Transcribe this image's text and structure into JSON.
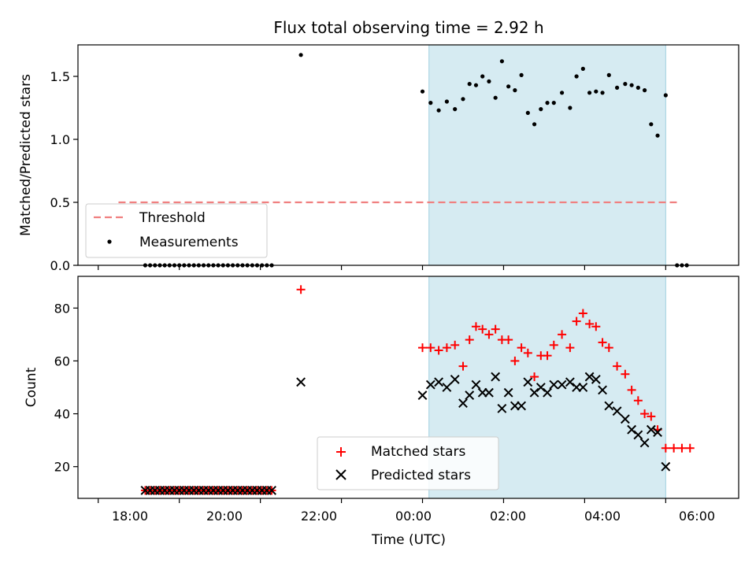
{
  "chart_data": [
    {
      "type": "scatter",
      "title": "Flux total observing time = 2.92 h",
      "ylabel": "Matched/Predicted stars",
      "xlim": [
        -1.25,
        6.9
      ],
      "ylim": [
        0,
        1.75
      ],
      "yticks": [
        0.0,
        0.5,
        1.0,
        1.5
      ],
      "ytick_labels": [
        "0.0",
        "0.5",
        "1.0",
        "1.5"
      ],
      "shaded_span": [
        3.08,
        6.0
      ],
      "shaded_color": "#add8e6",
      "threshold": {
        "label": "Threshold",
        "value": 0.5,
        "x_range": [
          -0.75,
          6.17
        ],
        "color": "#f08080"
      },
      "measurements": {
        "label": "Measurements",
        "color": "#000000",
        "points": [
          [
            -0.42,
            0.0
          ],
          [
            -0.36,
            0.0
          ],
          [
            -0.3,
            0.0
          ],
          [
            -0.24,
            0.0
          ],
          [
            -0.18,
            0.0
          ],
          [
            -0.12,
            0.0
          ],
          [
            -0.06,
            0.0
          ],
          [
            0.0,
            0.0
          ],
          [
            0.06,
            0.0
          ],
          [
            0.12,
            0.0
          ],
          [
            0.18,
            0.0
          ],
          [
            0.24,
            0.0
          ],
          [
            0.3,
            0.0
          ],
          [
            0.36,
            0.0
          ],
          [
            0.42,
            0.0
          ],
          [
            0.48,
            0.0
          ],
          [
            0.54,
            0.0
          ],
          [
            0.6,
            0.0
          ],
          [
            0.66,
            0.0
          ],
          [
            0.72,
            0.0
          ],
          [
            0.78,
            0.0
          ],
          [
            0.84,
            0.0
          ],
          [
            0.9,
            0.0
          ],
          [
            0.96,
            0.0
          ],
          [
            1.02,
            0.0
          ],
          [
            1.08,
            0.0
          ],
          [
            1.14,
            0.0
          ],
          [
            1.5,
            1.67
          ],
          [
            3.0,
            1.38
          ],
          [
            3.1,
            1.29
          ],
          [
            3.2,
            1.23
          ],
          [
            3.3,
            1.3
          ],
          [
            3.4,
            1.24
          ],
          [
            3.5,
            1.32
          ],
          [
            3.58,
            1.44
          ],
          [
            3.66,
            1.43
          ],
          [
            3.74,
            1.5
          ],
          [
            3.82,
            1.46
          ],
          [
            3.9,
            1.33
          ],
          [
            3.98,
            1.62
          ],
          [
            4.06,
            1.42
          ],
          [
            4.14,
            1.39
          ],
          [
            4.22,
            1.51
          ],
          [
            4.3,
            1.21
          ],
          [
            4.38,
            1.12
          ],
          [
            4.46,
            1.24
          ],
          [
            4.54,
            1.29
          ],
          [
            4.62,
            1.29
          ],
          [
            4.72,
            1.37
          ],
          [
            4.82,
            1.25
          ],
          [
            4.9,
            1.5
          ],
          [
            4.98,
            1.56
          ],
          [
            5.06,
            1.37
          ],
          [
            5.14,
            1.38
          ],
          [
            5.22,
            1.37
          ],
          [
            5.3,
            1.51
          ],
          [
            5.4,
            1.41
          ],
          [
            5.5,
            1.44
          ],
          [
            5.58,
            1.43
          ],
          [
            5.66,
            1.41
          ],
          [
            5.74,
            1.39
          ],
          [
            5.82,
            1.12
          ],
          [
            5.9,
            1.03
          ],
          [
            6.0,
            1.35
          ],
          [
            6.14,
            0.0
          ],
          [
            6.2,
            0.0
          ],
          [
            6.26,
            0.0
          ]
        ]
      },
      "legend": {
        "position": "lower-left",
        "entries": [
          "Threshold",
          "Measurements"
        ]
      }
    },
    {
      "type": "scatter",
      "xlabel": "Time (UTC)",
      "ylabel": "Count",
      "xlim": [
        -1.25,
        6.9
      ],
      "ylim": [
        8,
        92
      ],
      "yticks": [
        20,
        40,
        60,
        80
      ],
      "ytick_labels": [
        "20",
        "40",
        "60",
        "80"
      ],
      "xticks": [
        -1,
        0,
        1,
        2,
        3,
        4,
        5,
        6
      ],
      "xticks_labeled": [
        -6,
        -4,
        -2,
        0,
        2,
        4,
        6
      ],
      "xtick_labels": [
        "18:00",
        "20:00",
        "22:00",
        "00:00",
        "02:00",
        "04:00",
        "06:00"
      ],
      "shaded_span": [
        3.08,
        6.0
      ],
      "shaded_color": "#add8e6",
      "series": [
        {
          "name": "Matched stars",
          "marker": "plus",
          "color": "#ff0000",
          "points": [
            [
              -0.42,
              11
            ],
            [
              -0.36,
              11
            ],
            [
              -0.3,
              11
            ],
            [
              -0.24,
              11
            ],
            [
              -0.18,
              11
            ],
            [
              -0.12,
              11
            ],
            [
              -0.06,
              11
            ],
            [
              0.0,
              11
            ],
            [
              0.06,
              11
            ],
            [
              0.12,
              11
            ],
            [
              0.18,
              11
            ],
            [
              0.24,
              11
            ],
            [
              0.3,
              11
            ],
            [
              0.36,
              11
            ],
            [
              0.42,
              11
            ],
            [
              0.48,
              11
            ],
            [
              0.54,
              11
            ],
            [
              0.6,
              11
            ],
            [
              0.66,
              11
            ],
            [
              0.72,
              11
            ],
            [
              0.78,
              11
            ],
            [
              0.84,
              11
            ],
            [
              0.9,
              11
            ],
            [
              0.96,
              11
            ],
            [
              1.02,
              11
            ],
            [
              1.08,
              11
            ],
            [
              1.14,
              11
            ],
            [
              1.5,
              87
            ],
            [
              3.0,
              65
            ],
            [
              3.1,
              65
            ],
            [
              3.2,
              64
            ],
            [
              3.3,
              65
            ],
            [
              3.4,
              66
            ],
            [
              3.5,
              58
            ],
            [
              3.58,
              68
            ],
            [
              3.66,
              73
            ],
            [
              3.74,
              72
            ],
            [
              3.82,
              70
            ],
            [
              3.9,
              72
            ],
            [
              3.98,
              68
            ],
            [
              4.06,
              68
            ],
            [
              4.14,
              60
            ],
            [
              4.22,
              65
            ],
            [
              4.3,
              63
            ],
            [
              4.38,
              54
            ],
            [
              4.46,
              62
            ],
            [
              4.54,
              62
            ],
            [
              4.62,
              66
            ],
            [
              4.72,
              70
            ],
            [
              4.82,
              65
            ],
            [
              4.9,
              75
            ],
            [
              4.98,
              78
            ],
            [
              5.06,
              74
            ],
            [
              5.14,
              73
            ],
            [
              5.22,
              67
            ],
            [
              5.3,
              65
            ],
            [
              5.4,
              58
            ],
            [
              5.5,
              55
            ],
            [
              5.58,
              49
            ],
            [
              5.66,
              45
            ],
            [
              5.74,
              40
            ],
            [
              5.82,
              39
            ],
            [
              5.9,
              34
            ],
            [
              6.0,
              27
            ],
            [
              6.1,
              27
            ],
            [
              6.2,
              27
            ],
            [
              6.3,
              27
            ]
          ]
        },
        {
          "name": "Predicted stars",
          "marker": "x",
          "color": "#000000",
          "points": [
            [
              -0.42,
              11
            ],
            [
              -0.36,
              11
            ],
            [
              -0.3,
              11
            ],
            [
              -0.24,
              11
            ],
            [
              -0.18,
              11
            ],
            [
              -0.12,
              11
            ],
            [
              -0.06,
              11
            ],
            [
              0.0,
              11
            ],
            [
              0.06,
              11
            ],
            [
              0.12,
              11
            ],
            [
              0.18,
              11
            ],
            [
              0.24,
              11
            ],
            [
              0.3,
              11
            ],
            [
              0.36,
              11
            ],
            [
              0.42,
              11
            ],
            [
              0.48,
              11
            ],
            [
              0.54,
              11
            ],
            [
              0.6,
              11
            ],
            [
              0.66,
              11
            ],
            [
              0.72,
              11
            ],
            [
              0.78,
              11
            ],
            [
              0.84,
              11
            ],
            [
              0.9,
              11
            ],
            [
              0.96,
              11
            ],
            [
              1.02,
              11
            ],
            [
              1.08,
              11
            ],
            [
              1.14,
              11
            ],
            [
              1.5,
              52
            ],
            [
              3.0,
              47
            ],
            [
              3.1,
              51
            ],
            [
              3.2,
              52
            ],
            [
              3.3,
              50
            ],
            [
              3.4,
              53
            ],
            [
              3.5,
              44
            ],
            [
              3.58,
              47
            ],
            [
              3.66,
              51
            ],
            [
              3.74,
              48
            ],
            [
              3.82,
              48
            ],
            [
              3.9,
              54
            ],
            [
              3.98,
              42
            ],
            [
              4.06,
              48
            ],
            [
              4.14,
              43
            ],
            [
              4.22,
              43
            ],
            [
              4.3,
              52
            ],
            [
              4.38,
              48
            ],
            [
              4.46,
              50
            ],
            [
              4.54,
              48
            ],
            [
              4.62,
              51
            ],
            [
              4.72,
              51
            ],
            [
              4.82,
              52
            ],
            [
              4.9,
              50
            ],
            [
              4.98,
              50
            ],
            [
              5.06,
              54
            ],
            [
              5.14,
              53
            ],
            [
              5.22,
              49
            ],
            [
              5.3,
              43
            ],
            [
              5.4,
              41
            ],
            [
              5.5,
              38
            ],
            [
              5.58,
              34
            ],
            [
              5.66,
              32
            ],
            [
              5.74,
              29
            ],
            [
              5.82,
              34
            ],
            [
              5.9,
              33
            ],
            [
              6.0,
              20
            ]
          ]
        }
      ],
      "legend": {
        "position": "lower-center",
        "entries": [
          "Matched stars",
          "Predicted stars"
        ]
      }
    }
  ]
}
